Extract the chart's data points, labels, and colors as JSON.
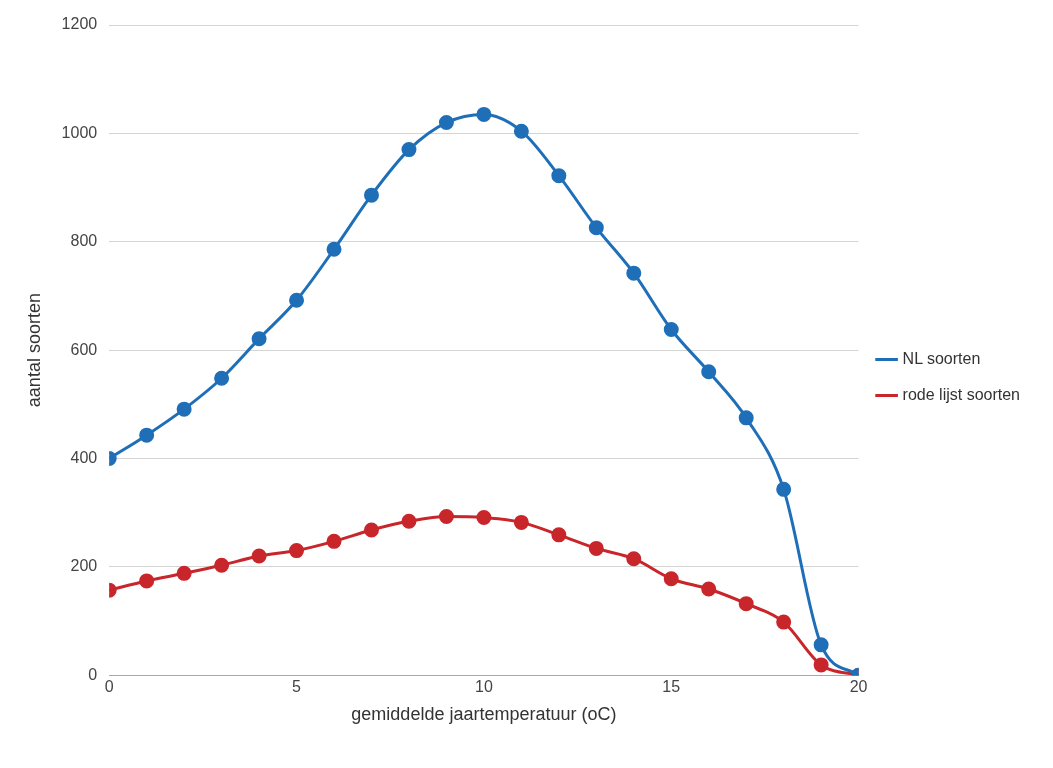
{
  "chart_data": {
    "type": "line",
    "xlabel": "gemiddelde jaartemperatuur (oC)",
    "ylabel": "aantal soorten",
    "x": [
      0,
      1,
      2,
      3,
      4,
      5,
      6,
      7,
      8,
      9,
      10,
      11,
      12,
      13,
      14,
      15,
      16,
      17,
      18,
      19,
      20
    ],
    "series": [
      {
        "name": "NL soorten",
        "color": "#1f6fb8",
        "values": [
          400,
          443,
          491,
          548,
          621,
          692,
          786,
          886,
          970,
          1020,
          1035,
          1004,
          922,
          826,
          742,
          638,
          560,
          475,
          343,
          56,
          0
        ]
      },
      {
        "name": "rode lijst soorten",
        "color": "#c8262a",
        "values": [
          157,
          174,
          188,
          203,
          220,
          230,
          247,
          268,
          284,
          293,
          291,
          282,
          259,
          234,
          215,
          178,
          159,
          132,
          98,
          19,
          0
        ]
      }
    ],
    "xlim": [
      0,
      20
    ],
    "xticks": [
      0,
      5,
      10,
      15,
      20
    ],
    "ylim": [
      0,
      1200
    ],
    "yticks": [
      0,
      200,
      400,
      600,
      800,
      1000,
      1200
    ],
    "grid": "y",
    "legend": "right",
    "marker": "circle",
    "line_style": "solid"
  }
}
